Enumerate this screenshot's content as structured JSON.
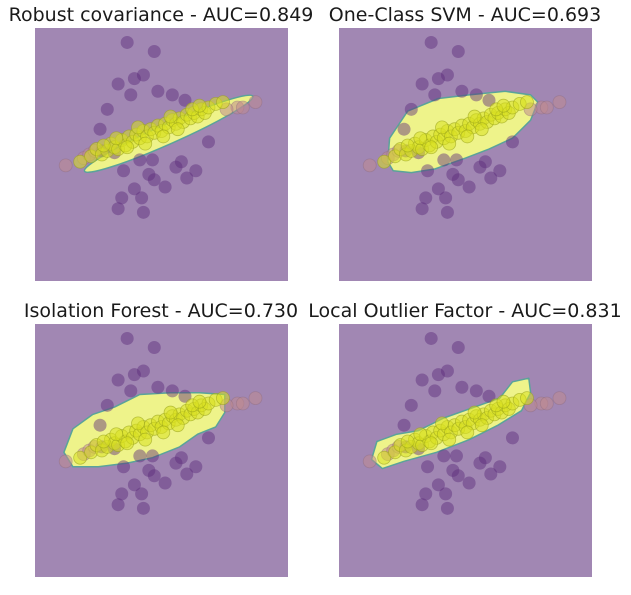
{
  "figure": {
    "background": "#ffffff"
  },
  "colors": {
    "background_region": "#a187b3",
    "inlier_region": "#eef38a",
    "contour": "#5aa39a",
    "inlier_point": "#d9e021",
    "inlier_point_edge": "#9aa31a",
    "outlier_point": "#5b2a7a",
    "outlier_point_alt": "#c08a90"
  },
  "chart_data": [
    {
      "type": "scatter",
      "title": "Robust covariance - AUC=0.849",
      "method": "Robust covariance",
      "auc": 0.849,
      "grid": false,
      "axes_visible": false,
      "xlim": [
        -7,
        7
      ],
      "ylim": [
        -7,
        7
      ],
      "region_shape": "ellipse",
      "region": {
        "cx": 0.4,
        "cy": 1.15,
        "rx": 5.1,
        "ry": 0.55,
        "angle_deg": 24
      }
    },
    {
      "type": "scatter",
      "title": "One-Class SVM - AUC=0.693",
      "method": "One-Class SVM",
      "auc": 0.693,
      "grid": false,
      "axes_visible": false,
      "xlim": [
        -7,
        7
      ],
      "ylim": [
        -7,
        7
      ],
      "region_shape": "polygon",
      "region_points": [
        [
          -4.3,
          -0.4
        ],
        [
          -4.2,
          0.9
        ],
        [
          -3.2,
          2.4
        ],
        [
          -1.5,
          3.1
        ],
        [
          0.2,
          3.3
        ],
        [
          2.2,
          3.5
        ],
        [
          3.6,
          3.3
        ],
        [
          4.0,
          2.9
        ],
        [
          3.6,
          1.9
        ],
        [
          2.6,
          0.9
        ],
        [
          1.3,
          0.3
        ],
        [
          0.0,
          -0.2
        ],
        [
          -1.7,
          -0.8
        ],
        [
          -3.0,
          -1.0
        ],
        [
          -4.0,
          -0.9
        ]
      ]
    },
    {
      "type": "scatter",
      "title": "Isolation Forest - AUC=0.730",
      "method": "Isolation Forest",
      "auc": 0.73,
      "grid": false,
      "axes_visible": false,
      "xlim": [
        -7,
        7
      ],
      "ylim": [
        -7,
        7
      ],
      "region_shape": "polygon",
      "region_points": [
        [
          -5.4,
          -0.1
        ],
        [
          -4.9,
          1.2
        ],
        [
          -3.8,
          2.0
        ],
        [
          -2.6,
          2.4
        ],
        [
          -1.2,
          3.1
        ],
        [
          0.5,
          3.2
        ],
        [
          2.1,
          3.2
        ],
        [
          3.5,
          3.1
        ],
        [
          3.5,
          2.1
        ],
        [
          3.0,
          1.3
        ],
        [
          2.0,
          0.9
        ],
        [
          1.0,
          0.2
        ],
        [
          -0.5,
          -0.4
        ],
        [
          -1.9,
          -0.7
        ],
        [
          -3.5,
          -0.9
        ],
        [
          -4.9,
          -0.9
        ]
      ]
    },
    {
      "type": "scatter",
      "title": "Local Outlier Factor - AUC=0.831",
      "method": "Local Outlier Factor",
      "auc": 0.831,
      "grid": false,
      "axes_visible": false,
      "xlim": [
        -7,
        7
      ],
      "ylim": [
        -7,
        7
      ],
      "region_shape": "polygon",
      "region_points": [
        [
          -5.2,
          -0.5
        ],
        [
          -4.9,
          0.5
        ],
        [
          -3.8,
          0.9
        ],
        [
          -2.6,
          1.1
        ],
        [
          -1.2,
          1.8
        ],
        [
          0.5,
          2.4
        ],
        [
          1.9,
          2.9
        ],
        [
          2.6,
          3.8
        ],
        [
          3.5,
          4.0
        ],
        [
          3.6,
          3.2
        ],
        [
          3.1,
          2.2
        ],
        [
          1.8,
          1.4
        ],
        [
          0.2,
          0.6
        ],
        [
          -1.6,
          -0.1
        ],
        [
          -3.4,
          -0.6
        ],
        [
          -4.6,
          -1.0
        ]
      ]
    }
  ],
  "inliers": [
    [
      -4.5,
      -0.4
    ],
    [
      -3.9,
      -0.1
    ],
    [
      -3.6,
      0.3
    ],
    [
      -3.3,
      0.0
    ],
    [
      -3.0,
      0.2
    ],
    [
      -2.8,
      0.6
    ],
    [
      -2.6,
      0.4
    ],
    [
      -2.4,
      0.3
    ],
    [
      -2.2,
      0.8
    ],
    [
      -2.0,
      0.5
    ],
    [
      -1.8,
      1.0
    ],
    [
      -1.6,
      0.7
    ],
    [
      -1.4,
      1.1
    ],
    [
      -1.2,
      0.9
    ],
    [
      -1.0,
      1.3
    ],
    [
      -0.8,
      1.0
    ],
    [
      -0.6,
      1.4
    ],
    [
      -0.4,
      1.2
    ],
    [
      -0.2,
      1.6
    ],
    [
      0.0,
      1.3
    ],
    [
      0.2,
      1.7
    ],
    [
      0.4,
      1.5
    ],
    [
      0.6,
      1.9
    ],
    [
      0.8,
      1.7
    ],
    [
      1.0,
      2.0
    ],
    [
      1.2,
      1.8
    ],
    [
      1.4,
      2.2
    ],
    [
      1.6,
      2.0
    ],
    [
      1.8,
      2.3
    ],
    [
      2.0,
      2.1
    ],
    [
      2.2,
      2.5
    ],
    [
      2.4,
      2.3
    ],
    [
      2.6,
      2.6
    ],
    [
      3.0,
      2.8
    ],
    [
      3.4,
      2.9
    ],
    [
      -2.5,
      0.9
    ],
    [
      -1.9,
      0.4
    ],
    [
      -0.9,
      0.6
    ],
    [
      0.1,
      1.0
    ],
    [
      0.9,
      1.4
    ],
    [
      1.7,
      2.5
    ],
    [
      -3.2,
      0.5
    ],
    [
      -1.3,
      1.5
    ],
    [
      0.5,
      2.1
    ],
    [
      2.1,
      2.7
    ]
  ],
  "outliers": [
    [
      -1.9,
      6.2
    ],
    [
      -2.4,
      3.9
    ],
    [
      -1.7,
      3.3
    ],
    [
      -1.5,
      4.2
    ],
    [
      -0.4,
      5.7
    ],
    [
      -1.0,
      4.4
    ],
    [
      0.6,
      3.3
    ],
    [
      -0.2,
      3.5
    ],
    [
      1.3,
      3.0
    ],
    [
      -3.0,
      2.5
    ],
    [
      -3.4,
      1.4
    ],
    [
      -3.3,
      0.2
    ],
    [
      -2.6,
      0.1
    ],
    [
      -1.2,
      -0.3
    ],
    [
      -0.7,
      -1.1
    ],
    [
      -2.1,
      -0.9
    ],
    [
      -1.5,
      -1.9
    ],
    [
      -1.1,
      -2.4
    ],
    [
      0.2,
      -1.8
    ],
    [
      0.8,
      -0.7
    ],
    [
      1.4,
      -1.3
    ],
    [
      1.9,
      -0.9
    ],
    [
      -0.4,
      -1.4
    ],
    [
      2.6,
      0.7
    ],
    [
      -2.2,
      -2.4
    ],
    [
      -2.4,
      -3.0
    ],
    [
      -1.0,
      -3.2
    ],
    [
      1.1,
      -0.4
    ],
    [
      -0.5,
      -0.3
    ]
  ],
  "outliers_alt": [
    [
      -5.3,
      -0.6
    ],
    [
      -4.3,
      -0.2
    ],
    [
      -4.0,
      0.0
    ],
    [
      4.2,
      2.6
    ],
    [
      4.5,
      2.6
    ],
    [
      5.2,
      2.9
    ],
    [
      3.6,
      2.5
    ],
    [
      -3.7,
      0.2
    ]
  ]
}
